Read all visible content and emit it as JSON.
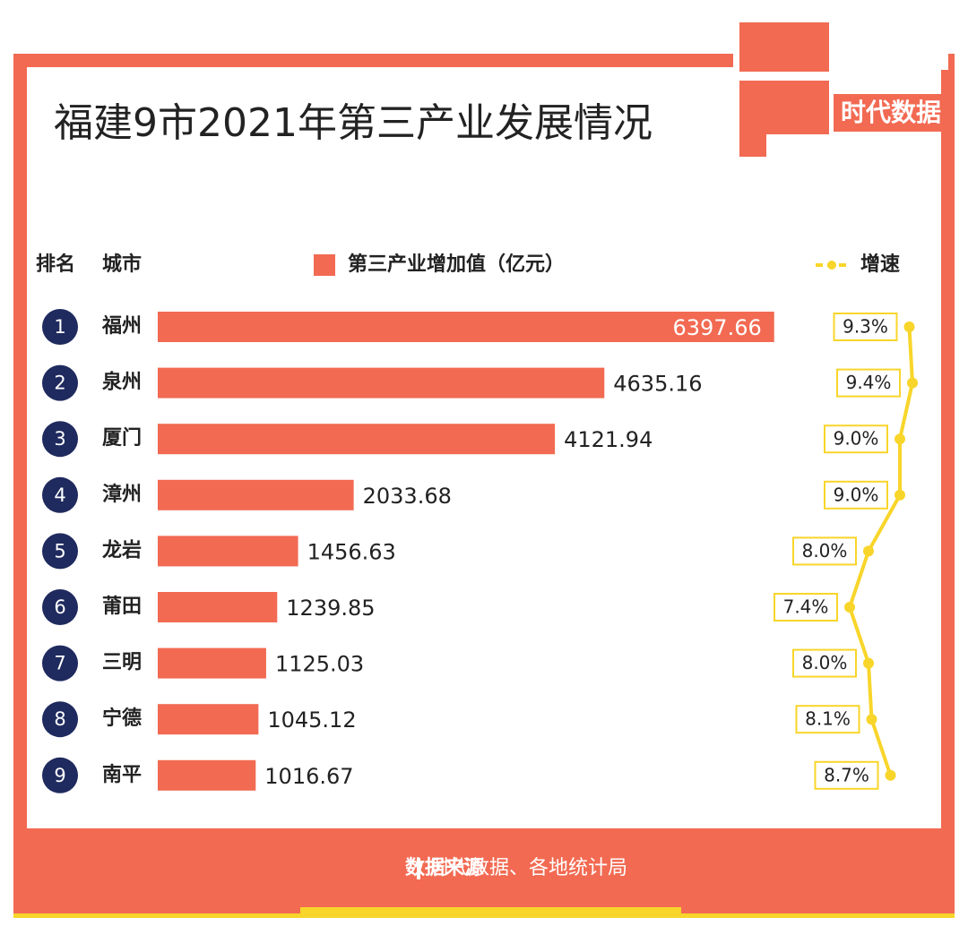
{
  "title": "福建9市2021年第三产业发展情况",
  "logo": "时代数据",
  "source_label": "数据来源",
  "source": "时代数据、各地统计局",
  "chart_data": {
    "type": "bar",
    "orientation": "horizontal",
    "rank_header": "排名",
    "category_header": "城市",
    "ranks": [
      1,
      2,
      3,
      4,
      5,
      6,
      7,
      8,
      9
    ],
    "categories": [
      "福州",
      "泉州",
      "厦门",
      "漳州",
      "龙岩",
      "莆田",
      "三明",
      "宁德",
      "南平"
    ],
    "xlim": [
      0,
      6400
    ],
    "x2lim": [
      7,
      9.5
    ],
    "series": [
      {
        "name": "第三产业增加值（亿元）",
        "type": "bar",
        "color": "#f26a52",
        "values": [
          6397.66,
          4635.16,
          4121.94,
          2033.68,
          1456.63,
          1239.85,
          1125.03,
          1045.12,
          1016.67
        ]
      },
      {
        "name": "增速",
        "type": "line",
        "axis": "x2",
        "color": "#f8d52a",
        "values": [
          9.3,
          9.4,
          9.0,
          9.0,
          8.0,
          7.4,
          8.0,
          8.1,
          8.7
        ],
        "value_labels": [
          "9.3%",
          "9.4%",
          "9.0%",
          "9.0%",
          "8.0%",
          "7.4%",
          "8.0%",
          "8.1%",
          "8.7%"
        ]
      }
    ]
  }
}
